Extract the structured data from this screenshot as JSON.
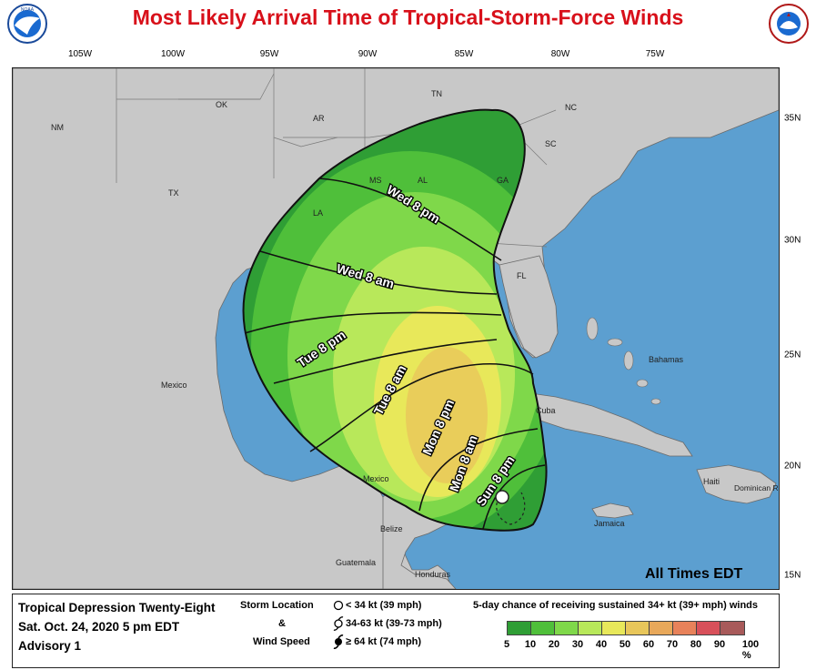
{
  "title": "Most Likely Arrival Time of Tropical-Storm-Force Winds",
  "longitude_labels": [
    "105W",
    "100W",
    "95W",
    "90W",
    "85W",
    "80W",
    "75W"
  ],
  "latitude_labels": [
    "35N",
    "30N",
    "25N",
    "20N",
    "15N"
  ],
  "state_labels": [
    "NM",
    "OK",
    "TX",
    "AR",
    "TN",
    "NC",
    "SC",
    "MS",
    "AL",
    "GA",
    "LA",
    "FL"
  ],
  "region_labels": [
    "Mexico",
    "Bahamas",
    "Cuba",
    "Haiti",
    "Dominican Republic",
    "Jamaica",
    "Belize",
    "Guatemala",
    "Honduras"
  ],
  "arrival_time_labels": [
    "Wed 8 pm",
    "Wed 8 am",
    "Tue 8 pm",
    "Tue 8 am",
    "Mon 8 pm",
    "Mon 8 am",
    "Sun 8 pm"
  ],
  "note": "All Times EDT",
  "storm": {
    "name": "Tropical Depression Twenty-Eight",
    "date": "Sat. Oct. 24, 2020  5 pm EDT",
    "advisory": "Advisory 1"
  },
  "legend": {
    "storm_location_title": "Storm Location",
    "ampersand": "&",
    "wind_speed_title": "Wind Speed",
    "items": [
      "< 34 kt (39 mph)",
      "34-63 kt (39-73 mph)",
      "≥ 64 kt (74 mph)"
    ],
    "probability_title": "5-day chance of receiving sustained 34+ kt (39+ mph) winds",
    "scale_labels": [
      "5",
      "10",
      "20",
      "30",
      "40",
      "50",
      "60",
      "70",
      "80",
      "90",
      "100 %"
    ],
    "scale_colors": [
      "#2f9e35",
      "#4fbf3a",
      "#7fd84a",
      "#b8e85a",
      "#e8e85a",
      "#e8c65a",
      "#e8a85a",
      "#e8825a",
      "#d8505a",
      "#a85a5a",
      "#a050c0"
    ]
  },
  "colors": {
    "ocean": "#5c9fd0",
    "land": "#c8c8c8",
    "title_red": "#d8101a"
  }
}
